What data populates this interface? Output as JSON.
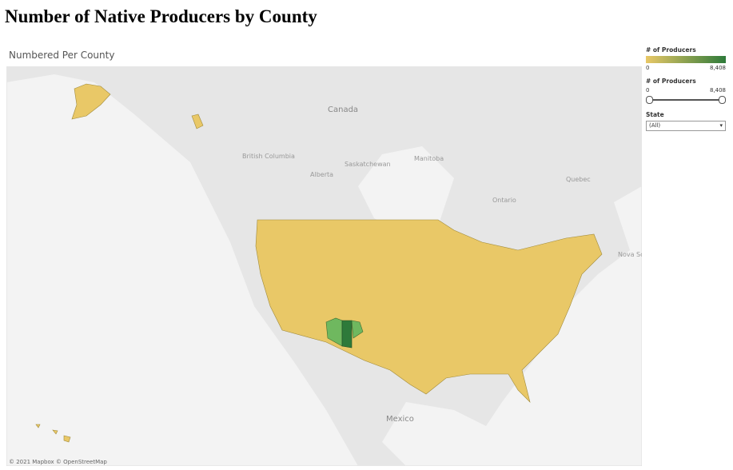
{
  "header": {
    "title": "Number of Native Producers by County",
    "subtitle": "Numbered Per County"
  },
  "map": {
    "labels": [
      "Canada",
      "British Columbia",
      "Alberta",
      "Saskatchewan",
      "Manitoba",
      "Ontario",
      "Quebec",
      "Nova Sco",
      "Mexico"
    ],
    "attribution": "© 2021 Mapbox © OpenStreetMap"
  },
  "legend": {
    "title": "# of Producers",
    "min": 0,
    "max": {
      "value": 8408,
      "label": "8,408"
    },
    "colors": [
      "#e9c867",
      "#2e7a3a"
    ]
  },
  "filter": {
    "title": "# of Producers",
    "min": 0,
    "max": {
      "value": 8408,
      "label": "8,408"
    }
  },
  "state_filter": {
    "title": "State",
    "value": "(All)"
  }
}
